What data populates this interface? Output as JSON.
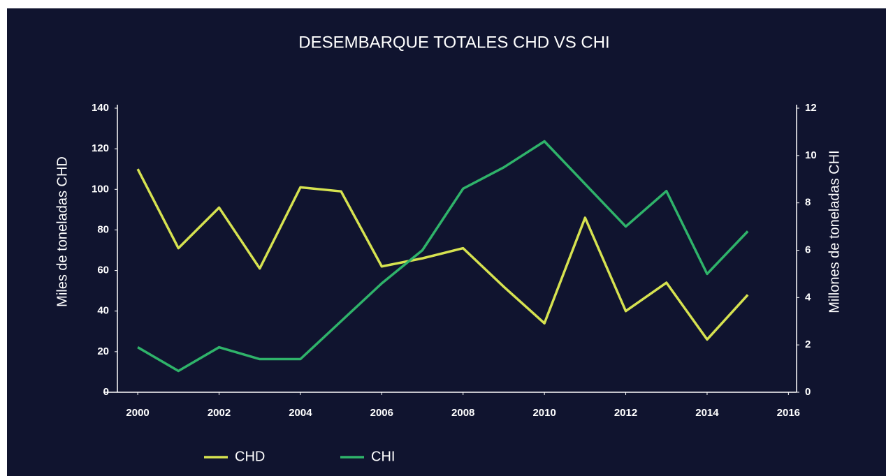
{
  "chart_data": {
    "type": "line",
    "title": "DESEMBARQUE TOTALES CHD VS CHI",
    "y_label": "Miles de toneladas CHD",
    "y2_label": "Millones de toneladas CHI",
    "x": [
      2000,
      2001,
      2002,
      2003,
      2004,
      2005,
      2006,
      2007,
      2008,
      2009,
      2010,
      2011,
      2012,
      2013,
      2014,
      2015
    ],
    "series": [
      {
        "name": "CHD",
        "color": "#d6e250",
        "axis": "y",
        "values": [
          110,
          71,
          91,
          61,
          101,
          99,
          62,
          66,
          71,
          52,
          34,
          86,
          40,
          54,
          26,
          48
        ]
      },
      {
        "name": "CHI",
        "color": "#2fb36a",
        "axis": "y2",
        "values": [
          1.9,
          0.9,
          1.9,
          1.4,
          1.4,
          3.0,
          4.6,
          6.0,
          8.6,
          9.5,
          10.6,
          8.8,
          7.0,
          8.5,
          5.0,
          6.8
        ]
      }
    ],
    "xlim": [
      1999.5,
      2016.2
    ],
    "xticks": [
      2000,
      2002,
      2004,
      2006,
      2008,
      2010,
      2012,
      2014,
      2016
    ],
    "ylim": [
      0,
      140
    ],
    "yticks": [
      0,
      20,
      40,
      60,
      80,
      100,
      120,
      140
    ],
    "y2lim": [
      0,
      12
    ],
    "y2ticks": [
      0,
      2,
      4,
      6,
      8,
      10,
      12
    ],
    "grid": false,
    "legend": "bottom"
  }
}
